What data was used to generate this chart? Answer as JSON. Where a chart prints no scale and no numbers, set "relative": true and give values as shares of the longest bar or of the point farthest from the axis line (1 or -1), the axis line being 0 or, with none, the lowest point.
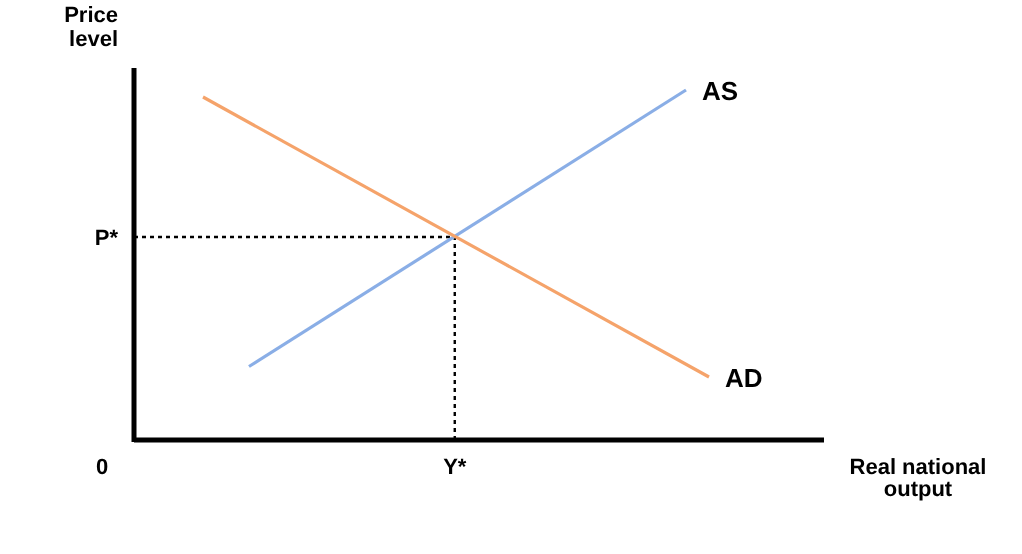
{
  "chart_data": {
    "type": "line",
    "relative": true,
    "ylabel": "Price level",
    "xlabel": "Real national output",
    "categories": [
      null,
      null,
      null,
      null,
      null,
      null,
      null,
      null,
      null,
      null,
      null,
      null,
      null,
      null,
      null,
      null,
      null,
      null,
      null,
      null,
      null,
      null,
      null,
      null,
      null,
      null,
      null,
      null,
      null,
      null,
      null
    ],
    "legend": false,
    "marker": "none",
    "line_style": "solid",
    "series": [
      {
        "name": "AS",
        "color": "#8aaee6",
        "values": [
          null,
          null,
          null,
          null,
          null,
          0.21,
          null,
          null,
          null,
          null,
          null,
          null,
          null,
          null,
          null,
          null,
          null,
          null,
          null,
          null,
          null,
          null,
          null,
          null,
          1,
          null,
          null,
          null,
          null,
          null,
          null
        ]
      },
      {
        "name": "AD",
        "color": "#f5a36a",
        "values": [
          null,
          null,
          null,
          0.98,
          null,
          null,
          null,
          null,
          null,
          null,
          null,
          null,
          null,
          null,
          null,
          null,
          null,
          null,
          null,
          null,
          null,
          null,
          null,
          null,
          null,
          0.18,
          null,
          null,
          null,
          null,
          null
        ]
      }
    ],
    "ref_lines": [
      {
        "axis": "y",
        "value": 0.58,
        "label": "P*",
        "line_style": "dotted"
      },
      {
        "axis": "x",
        "label": "Y*",
        "line_style": "dotted"
      }
    ],
    "annotations": [
      "0"
    ]
  }
}
